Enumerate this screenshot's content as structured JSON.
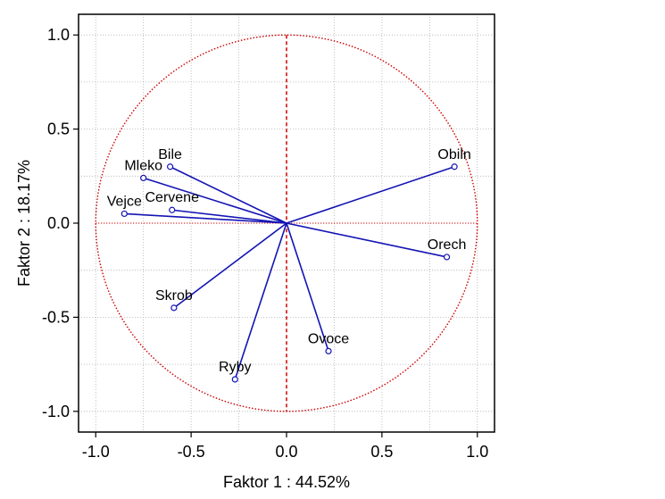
{
  "chart_data": {
    "type": "scatter",
    "title": "",
    "xlabel": "Faktor 1 : 44.52%",
    "ylabel": "Faktor 2 : 18.17%",
    "xlim": [
      -1.09,
      1.09
    ],
    "ylim": [
      -1.11,
      1.11
    ],
    "x_ticks": [
      -1.0,
      -0.5,
      0.0,
      0.5,
      1.0
    ],
    "y_ticks": [
      -1.0,
      -0.5,
      0.0,
      0.5,
      1.0
    ],
    "x_tick_labels": [
      "-1.0",
      "-0.5",
      "0.0",
      "0.5",
      "1.0"
    ],
    "y_tick_labels": [
      "1.0",
      "0.5",
      "0.0",
      "-0.5",
      "-1.0"
    ],
    "grid": true,
    "unit_circle": true,
    "points": [
      {
        "label": "Obiln",
        "x": 0.88,
        "y": 0.3
      },
      {
        "label": "Orech",
        "x": 0.84,
        "y": -0.18
      },
      {
        "label": "Bile",
        "x": -0.61,
        "y": 0.3
      },
      {
        "label": "Mleko",
        "x": -0.75,
        "y": 0.24
      },
      {
        "label": "Cervene",
        "x": -0.6,
        "y": 0.07
      },
      {
        "label": "Vejce",
        "x": -0.85,
        "y": 0.05
      },
      {
        "label": "Skrob",
        "x": -0.59,
        "y": -0.45
      },
      {
        "label": "Ryby",
        "x": -0.27,
        "y": -0.83
      },
      {
        "label": "Ovoce",
        "x": 0.22,
        "y": -0.68
      }
    ],
    "colors": {
      "vector": "#1414b4",
      "circle": "#cc0000",
      "grid": "#b0b0b0",
      "frame": "#000000"
    }
  }
}
